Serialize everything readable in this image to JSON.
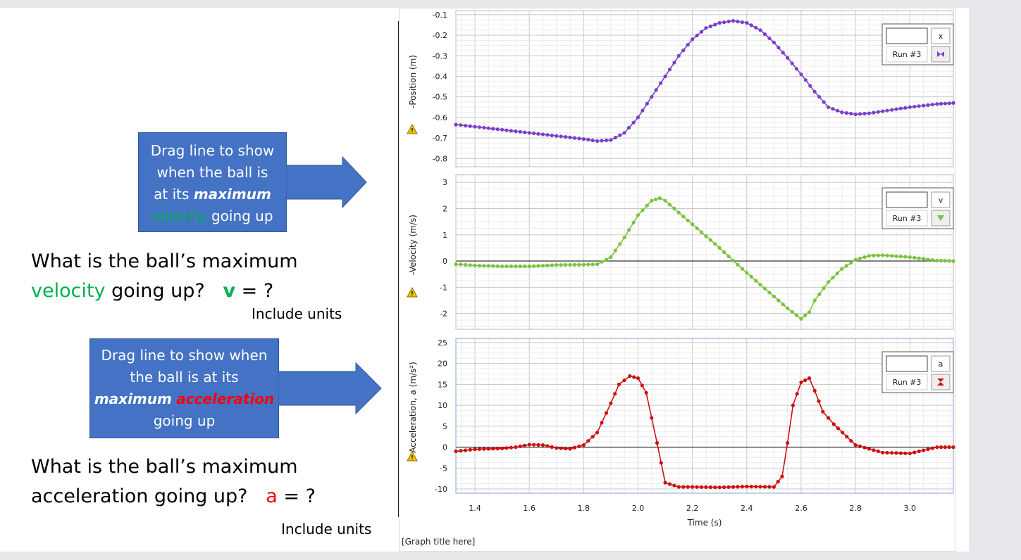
{
  "colors": {
    "callout_fill": "#4472c4",
    "green": "#00b050",
    "red": "#ff0000",
    "position_series": "#7b3fc9",
    "velocity_series": "#7dc23f",
    "acceleration_series": "#cc1111"
  },
  "callout_velocity": {
    "line1": "Drag line to show",
    "line2": "when the ball is",
    "line3_prefix": "at its ",
    "line3_bold": "maximum",
    "line4_colored": "velocity",
    "line4_rest": " going up"
  },
  "callout_acceleration": {
    "line1": "Drag line to show when",
    "line2": "the ball is at its",
    "line3_bold": "maximum",
    "line3_colored": "acceleration",
    "line4": "going up"
  },
  "question_velocity": {
    "line1": "What is the ball’s maximum",
    "colored_word": "velocity",
    "rest": " going up?",
    "var": "v",
    "eq": "=  ?",
    "units_note": "Include units"
  },
  "question_acceleration": {
    "line1": "What is the ball’s maximum",
    "line2": "acceleration going up?",
    "var": "a",
    "eq": "= ?",
    "units_note": "Include units"
  },
  "graph": {
    "title_placeholder": "[Graph title here]",
    "xlabel": "Time (s)",
    "warning_icon": "warning-triangle-icon"
  },
  "chart_data": [
    {
      "type": "line",
      "ylabel": "-Position (m)",
      "legend": {
        "variable": "x",
        "run": "Run #3",
        "marker": "bowtie"
      },
      "xlim": [
        1.33,
        3.16
      ],
      "ylim": [
        -0.84,
        -0.08
      ],
      "yticks": [
        "-0.1",
        "-0.2",
        "-0.3",
        "-0.4",
        "-0.5",
        "-0.6",
        "-0.7",
        "-0.8"
      ],
      "zero_line": false,
      "series": [
        {
          "x": [
            1.33,
            1.4,
            1.5,
            1.6,
            1.7,
            1.8,
            1.85,
            1.9,
            1.95,
            2.0,
            2.05,
            2.1,
            2.15,
            2.2,
            2.25,
            2.3,
            2.35,
            2.4,
            2.45,
            2.5,
            2.55,
            2.6,
            2.65,
            2.7,
            2.75,
            2.8,
            2.85,
            2.9,
            3.0,
            3.1,
            3.16
          ],
          "y": [
            -0.635,
            -0.645,
            -0.66,
            -0.675,
            -0.69,
            -0.705,
            -0.715,
            -0.71,
            -0.675,
            -0.6,
            -0.5,
            -0.4,
            -0.3,
            -0.22,
            -0.165,
            -0.14,
            -0.13,
            -0.14,
            -0.175,
            -0.235,
            -0.31,
            -0.39,
            -0.475,
            -0.55,
            -0.575,
            -0.585,
            -0.58,
            -0.57,
            -0.55,
            -0.535,
            -0.53
          ]
        }
      ]
    },
    {
      "type": "line",
      "ylabel": "-Velocity (m/s)",
      "legend": {
        "variable": "v",
        "run": "Run #3",
        "marker": "triangle"
      },
      "xlim": [
        1.33,
        3.16
      ],
      "ylim": [
        -2.6,
        3.3
      ],
      "yticks": [
        "3",
        "2",
        "1",
        "0",
        "-1",
        "-2"
      ],
      "zero_line": true,
      "series": [
        {
          "x": [
            1.33,
            1.4,
            1.5,
            1.6,
            1.7,
            1.8,
            1.85,
            1.9,
            1.95,
            2.0,
            2.05,
            2.08,
            2.1,
            2.15,
            2.2,
            2.25,
            2.3,
            2.35,
            2.4,
            2.45,
            2.5,
            2.55,
            2.6,
            2.63,
            2.65,
            2.7,
            2.75,
            2.8,
            2.85,
            2.9,
            3.0,
            3.1,
            3.16
          ],
          "y": [
            -0.12,
            -0.17,
            -0.2,
            -0.2,
            -0.15,
            -0.14,
            -0.12,
            0.15,
            0.9,
            1.75,
            2.3,
            2.4,
            2.3,
            1.85,
            1.4,
            0.95,
            0.5,
            0.02,
            -0.45,
            -0.9,
            -1.35,
            -1.8,
            -2.2,
            -1.95,
            -1.5,
            -0.8,
            -0.3,
            0.05,
            0.2,
            0.22,
            0.15,
            0.02,
            0.0
          ]
        }
      ]
    },
    {
      "type": "line",
      "ylabel": "-Acceleration, a (m/s²)",
      "legend": {
        "variable": "a",
        "run": "Run #3",
        "marker": "hourglass"
      },
      "xlim": [
        1.33,
        3.16
      ],
      "ylim": [
        -11,
        26
      ],
      "yticks": [
        "25",
        "20",
        "15",
        "10",
        "5",
        "0",
        "-5",
        "-10"
      ],
      "zero_line": true,
      "series": [
        {
          "x": [
            1.33,
            1.4,
            1.5,
            1.55,
            1.6,
            1.65,
            1.7,
            1.75,
            1.8,
            1.85,
            1.9,
            1.93,
            1.97,
            2.0,
            2.03,
            2.07,
            2.1,
            2.15,
            2.2,
            2.3,
            2.4,
            2.5,
            2.53,
            2.55,
            2.57,
            2.6,
            2.63,
            2.65,
            2.68,
            2.72,
            2.8,
            2.9,
            3.0,
            3.1,
            3.16
          ],
          "y": [
            -1.0,
            -0.5,
            -0.3,
            0.0,
            0.6,
            0.5,
            -0.2,
            -0.4,
            0.5,
            3.5,
            10.5,
            15.0,
            17.0,
            16.5,
            13.0,
            1.0,
            -8.5,
            -9.5,
            -9.5,
            -9.6,
            -9.4,
            -9.5,
            -7.0,
            1.0,
            10.0,
            15.5,
            16.5,
            13.5,
            8.5,
            5.5,
            0.5,
            -1.3,
            -1.5,
            0.0,
            0.0
          ]
        }
      ]
    }
  ]
}
